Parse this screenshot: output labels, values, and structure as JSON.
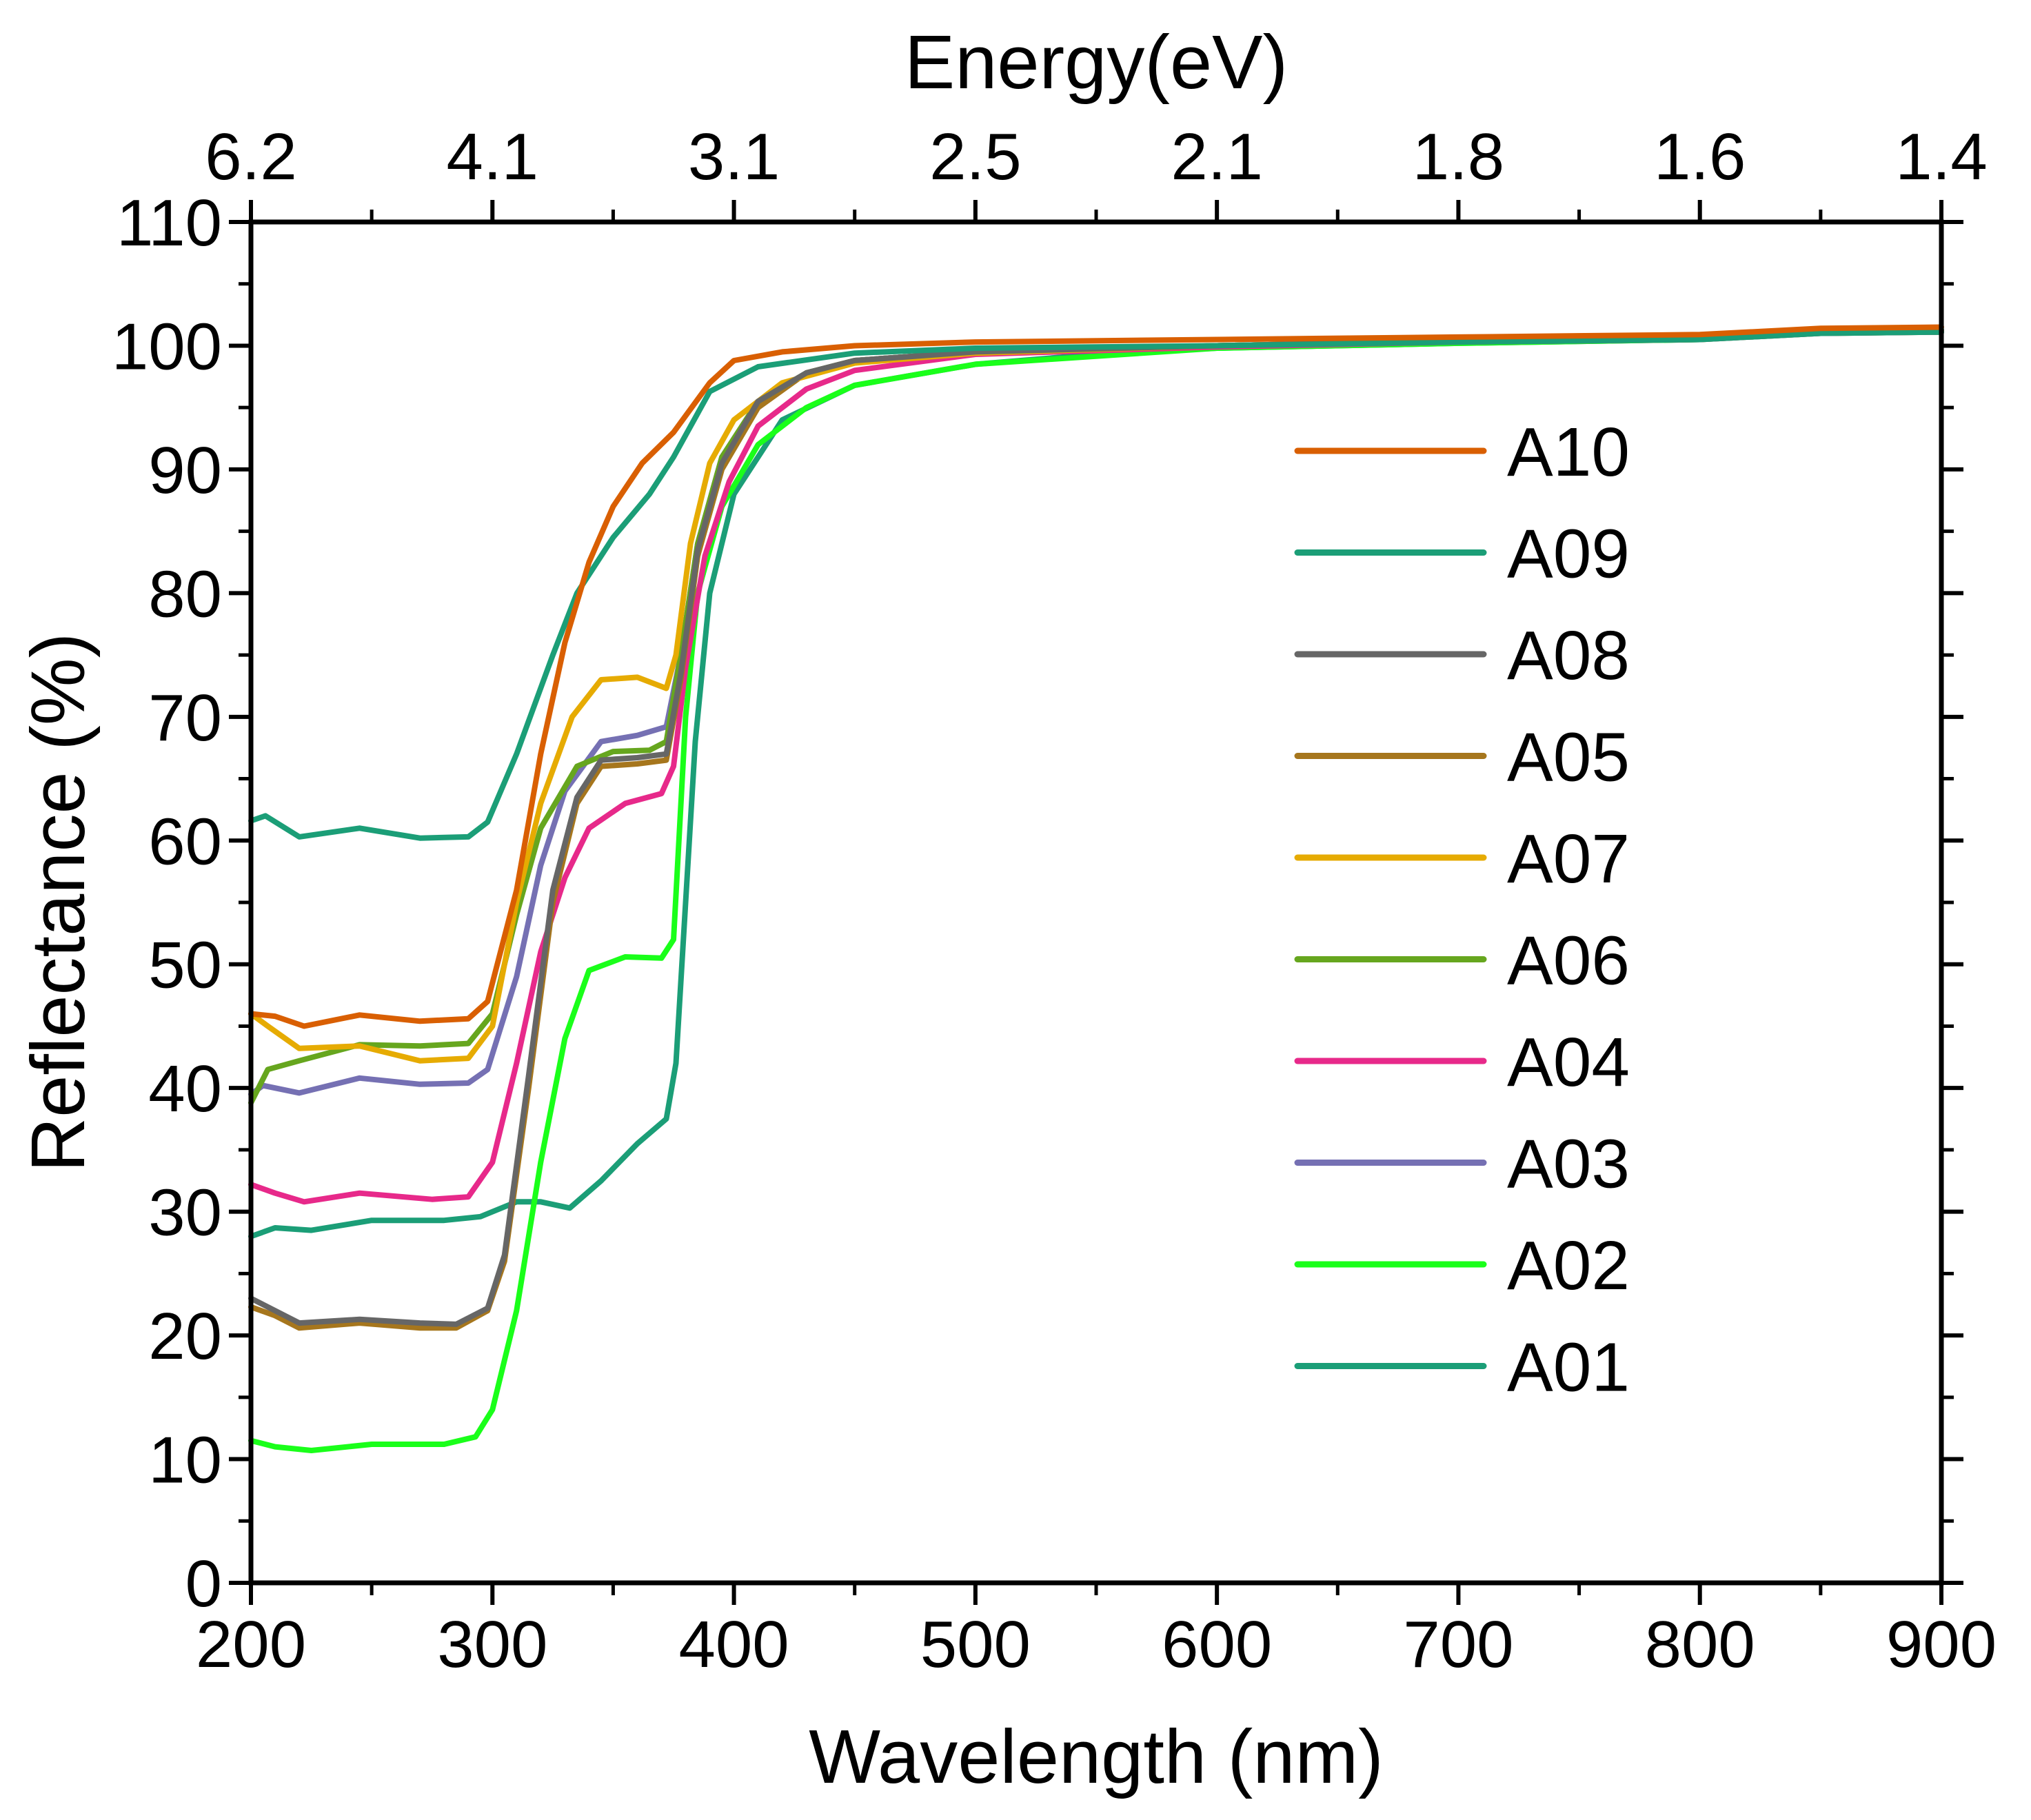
{
  "chart_data": {
    "type": "line",
    "title": "",
    "xlabel": "Wavelength (nm)",
    "ylabel": "Reflectance (%)",
    "top_xlabel": "Energy(eV)",
    "xlim": [
      200,
      900
    ],
    "ylim": [
      0,
      110
    ],
    "xticks": [
      "200",
      "300",
      "400",
      "500",
      "600",
      "700",
      "800",
      "900"
    ],
    "yticks": [
      "0",
      "10",
      "20",
      "30",
      "40",
      "50",
      "60",
      "70",
      "80",
      "90",
      "100",
      "110"
    ],
    "top_ticks": [
      {
        "wavelength": 200,
        "label": "6.2"
      },
      {
        "wavelength": 300,
        "label": "4.1"
      },
      {
        "wavelength": 400,
        "label": "3.1"
      },
      {
        "wavelength": 500,
        "label": "2.5"
      },
      {
        "wavelength": 600,
        "label": "2.1"
      },
      {
        "wavelength": 700,
        "label": "1.8"
      },
      {
        "wavelength": 800,
        "label": "1.6"
      },
      {
        "wavelength": 900,
        "label": "1.4"
      }
    ],
    "grid": false,
    "legend_position": "right",
    "series": [
      {
        "name": "A01",
        "color": "#1b9e77",
        "points": [
          [
            200,
            28
          ],
          [
            210,
            28.7
          ],
          [
            225,
            28.5
          ],
          [
            250,
            29.3
          ],
          [
            280,
            29.3
          ],
          [
            295,
            29.6
          ],
          [
            310,
            30.8
          ],
          [
            320,
            30.8
          ],
          [
            332,
            30.3
          ],
          [
            345,
            32.5
          ],
          [
            360,
            35.5
          ],
          [
            372,
            37.5
          ],
          [
            376,
            42
          ],
          [
            380,
            55
          ],
          [
            384,
            68
          ],
          [
            390,
            80
          ],
          [
            400,
            88
          ],
          [
            420,
            94
          ],
          [
            450,
            96.8
          ],
          [
            500,
            98.5
          ],
          [
            550,
            99.3
          ],
          [
            600,
            99.8
          ],
          [
            700,
            100.2
          ],
          [
            800,
            100.5
          ],
          [
            830,
            101
          ],
          [
            850,
            101.2
          ],
          [
            900,
            101.3
          ]
        ]
      },
      {
        "name": "A02",
        "color": "#1aff1a",
        "points": [
          [
            200,
            11.5
          ],
          [
            210,
            11
          ],
          [
            225,
            10.7
          ],
          [
            250,
            11.2
          ],
          [
            280,
            11.2
          ],
          [
            293,
            11.8
          ],
          [
            300,
            14
          ],
          [
            310,
            22
          ],
          [
            320,
            34
          ],
          [
            330,
            44
          ],
          [
            340,
            49.5
          ],
          [
            355,
            50.6
          ],
          [
            370,
            50.5
          ],
          [
            375,
            52
          ],
          [
            380,
            70
          ],
          [
            385,
            80
          ],
          [
            395,
            87
          ],
          [
            410,
            92
          ],
          [
            430,
            95
          ],
          [
            450,
            96.8
          ],
          [
            500,
            98.5
          ],
          [
            600,
            99.8
          ],
          [
            700,
            100.2
          ],
          [
            800,
            100.5
          ],
          [
            850,
            101
          ],
          [
            900,
            101.1
          ]
        ]
      },
      {
        "name": "A03",
        "color": "#7570b3",
        "points": [
          [
            200,
            39.5
          ],
          [
            205,
            40.2
          ],
          [
            220,
            39.6
          ],
          [
            245,
            40.8
          ],
          [
            270,
            40.3
          ],
          [
            290,
            40.4
          ],
          [
            298,
            41.5
          ],
          [
            310,
            49
          ],
          [
            320,
            58
          ],
          [
            330,
            64
          ],
          [
            345,
            68
          ],
          [
            360,
            68.5
          ],
          [
            372,
            69.2
          ],
          [
            378,
            75
          ],
          [
            385,
            84
          ],
          [
            395,
            91
          ],
          [
            410,
            95.5
          ],
          [
            430,
            97.8
          ],
          [
            450,
            98.8
          ],
          [
            500,
            99.5
          ],
          [
            600,
            100
          ],
          [
            700,
            100.4
          ],
          [
            800,
            100.6
          ],
          [
            850,
            101.1
          ],
          [
            900,
            101.2
          ]
        ]
      },
      {
        "name": "A04",
        "color": "#e7298a",
        "points": [
          [
            200,
            32.2
          ],
          [
            210,
            31.5
          ],
          [
            222,
            30.8
          ],
          [
            245,
            31.5
          ],
          [
            275,
            31
          ],
          [
            290,
            31.2
          ],
          [
            300,
            34
          ],
          [
            310,
            42
          ],
          [
            320,
            51
          ],
          [
            330,
            57
          ],
          [
            340,
            61
          ],
          [
            355,
            63
          ],
          [
            370,
            63.8
          ],
          [
            375,
            66
          ],
          [
            380,
            74
          ],
          [
            388,
            83
          ],
          [
            398,
            89
          ],
          [
            410,
            93.5
          ],
          [
            430,
            96.5
          ],
          [
            450,
            98
          ],
          [
            500,
            99.3
          ],
          [
            600,
            99.9
          ],
          [
            700,
            100.3
          ],
          [
            800,
            100.5
          ],
          [
            850,
            101
          ],
          [
            900,
            101.1
          ]
        ]
      },
      {
        "name": "A05",
        "color": "#a6761d",
        "points": [
          [
            200,
            22.3
          ],
          [
            210,
            21.6
          ],
          [
            220,
            20.6
          ],
          [
            245,
            21
          ],
          [
            270,
            20.6
          ],
          [
            285,
            20.6
          ],
          [
            298,
            22
          ],
          [
            305,
            26
          ],
          [
            315,
            40
          ],
          [
            325,
            55
          ],
          [
            335,
            63
          ],
          [
            345,
            66
          ],
          [
            360,
            66.2
          ],
          [
            372,
            66.5
          ],
          [
            378,
            73
          ],
          [
            385,
            83
          ],
          [
            395,
            90
          ],
          [
            410,
            95
          ],
          [
            430,
            97.8
          ],
          [
            450,
            98.8
          ],
          [
            500,
            99.5
          ],
          [
            600,
            100
          ],
          [
            700,
            100.4
          ],
          [
            800,
            100.6
          ],
          [
            850,
            101.1
          ],
          [
            900,
            101.2
          ]
        ]
      },
      {
        "name": "A06",
        "color": "#66a61e",
        "points": [
          [
            200,
            38.8
          ],
          [
            207,
            41.5
          ],
          [
            220,
            42.2
          ],
          [
            245,
            43.5
          ],
          [
            270,
            43.4
          ],
          [
            290,
            43.6
          ],
          [
            300,
            46
          ],
          [
            310,
            54
          ],
          [
            320,
            61
          ],
          [
            335,
            66
          ],
          [
            350,
            67.2
          ],
          [
            365,
            67.3
          ],
          [
            372,
            68
          ],
          [
            378,
            75
          ],
          [
            385,
            84
          ],
          [
            395,
            91
          ],
          [
            410,
            95.5
          ],
          [
            430,
            97.8
          ],
          [
            450,
            98.8
          ],
          [
            500,
            99.5
          ],
          [
            600,
            100
          ],
          [
            700,
            100.4
          ],
          [
            800,
            100.6
          ],
          [
            850,
            101.1
          ],
          [
            900,
            101.2
          ]
        ]
      },
      {
        "name": "A07",
        "color": "#e6ab02",
        "points": [
          [
            200,
            46
          ],
          [
            207,
            45
          ],
          [
            220,
            43.2
          ],
          [
            245,
            43.4
          ],
          [
            270,
            42.2
          ],
          [
            290,
            42.4
          ],
          [
            300,
            45
          ],
          [
            310,
            55
          ],
          [
            320,
            63
          ],
          [
            333,
            70
          ],
          [
            345,
            73
          ],
          [
            360,
            73.2
          ],
          [
            372,
            72.3
          ],
          [
            376,
            75
          ],
          [
            382,
            84
          ],
          [
            390,
            90.5
          ],
          [
            400,
            94
          ],
          [
            420,
            97
          ],
          [
            450,
            98.6
          ],
          [
            500,
            99.4
          ],
          [
            600,
            100
          ],
          [
            700,
            100.4
          ],
          [
            800,
            100.6
          ],
          [
            850,
            101.1
          ],
          [
            900,
            101.2
          ]
        ]
      },
      {
        "name": "A08",
        "color": "#666666",
        "points": [
          [
            200,
            23
          ],
          [
            210,
            22
          ],
          [
            220,
            21
          ],
          [
            245,
            21.3
          ],
          [
            270,
            21
          ],
          [
            285,
            20.9
          ],
          [
            298,
            22.2
          ],
          [
            305,
            26.5
          ],
          [
            315,
            41
          ],
          [
            325,
            56
          ],
          [
            335,
            63.5
          ],
          [
            345,
            66.5
          ],
          [
            360,
            66.7
          ],
          [
            372,
            67
          ],
          [
            378,
            73.5
          ],
          [
            385,
            83.5
          ],
          [
            395,
            90.5
          ],
          [
            410,
            95.5
          ],
          [
            430,
            97.8
          ],
          [
            450,
            98.8
          ],
          [
            500,
            99.5
          ],
          [
            600,
            100
          ],
          [
            700,
            100.4
          ],
          [
            800,
            100.6
          ],
          [
            850,
            101.1
          ],
          [
            900,
            101.2
          ]
        ]
      },
      {
        "name": "A09",
        "color": "#1b9e77",
        "points": [
          [
            200,
            61.6
          ],
          [
            206,
            62
          ],
          [
            220,
            60.3
          ],
          [
            245,
            61
          ],
          [
            270,
            60.2
          ],
          [
            290,
            60.3
          ],
          [
            298,
            61.5
          ],
          [
            310,
            67
          ],
          [
            325,
            75
          ],
          [
            335,
            80
          ],
          [
            350,
            84.5
          ],
          [
            365,
            88
          ],
          [
            375,
            91
          ],
          [
            390,
            96.3
          ],
          [
            410,
            98.3
          ],
          [
            450,
            99.4
          ],
          [
            500,
            99.8
          ],
          [
            600,
            100
          ],
          [
            700,
            100.3
          ],
          [
            800,
            100.5
          ],
          [
            850,
            101
          ],
          [
            900,
            101.1
          ]
        ]
      },
      {
        "name": "A10",
        "color": "#d95f02",
        "points": [
          [
            200,
            46
          ],
          [
            210,
            45.8
          ],
          [
            222,
            45
          ],
          [
            245,
            45.9
          ],
          [
            270,
            45.4
          ],
          [
            290,
            45.6
          ],
          [
            298,
            47
          ],
          [
            310,
            56
          ],
          [
            320,
            67
          ],
          [
            330,
            76
          ],
          [
            340,
            82.5
          ],
          [
            350,
            87
          ],
          [
            362,
            90.5
          ],
          [
            375,
            93
          ],
          [
            390,
            97
          ],
          [
            400,
            98.8
          ],
          [
            420,
            99.5
          ],
          [
            450,
            100
          ],
          [
            500,
            100.3
          ],
          [
            600,
            100.5
          ],
          [
            700,
            100.7
          ],
          [
            800,
            100.9
          ],
          [
            850,
            101.4
          ],
          [
            900,
            101.5
          ]
        ]
      }
    ],
    "legend": [
      "A10",
      "A09",
      "A08",
      "A05",
      "A07",
      "A06",
      "A04",
      "A03",
      "A02",
      "A01"
    ]
  }
}
